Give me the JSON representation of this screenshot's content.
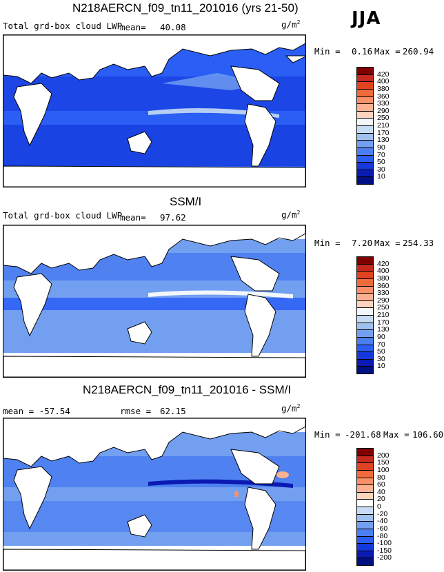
{
  "season": "JJA",
  "panels": [
    {
      "title": "N218AERCN_f09_tn11_201016 (yrs 21-50)",
      "subtitle_left": "Total grd-box cloud LWP",
      "mean_label": "mean=",
      "mean_value": "40.08",
      "units": "g/m",
      "units_sup": "2",
      "min_label": "Min =",
      "min_value": "0.16",
      "max_label": "Max =",
      "max_value": "260.94",
      "colorbar_levels": [
        "420",
        "400",
        "380",
        "360",
        "330",
        "290",
        "250",
        "210",
        "170",
        "130",
        "90",
        "70",
        "50",
        "30",
        "10"
      ],
      "colorbar_colors": [
        "#800000",
        "#c62a1e",
        "#e0431f",
        "#f06a3a",
        "#f8916a",
        "#fbb192",
        "#fdd4bf",
        "#f2f7fb",
        "#c6dbf4",
        "#9ec1ef",
        "#729ff0",
        "#4b7ef0",
        "#2a5ef4",
        "#1438dc",
        "#0a1ab2",
        "#001080"
      ]
    },
    {
      "title": "SSM/I",
      "subtitle_left": "Total grd-box cloud LWP",
      "mean_label": "mean=",
      "mean_value": "97.62",
      "units": "g/m",
      "units_sup": "2",
      "min_label": "Min =",
      "min_value": "7.20",
      "max_label": "Max =",
      "max_value": "254.33",
      "colorbar_levels": [
        "420",
        "400",
        "380",
        "360",
        "330",
        "290",
        "250",
        "210",
        "170",
        "130",
        "90",
        "70",
        "50",
        "30",
        "10"
      ],
      "colorbar_colors": [
        "#800000",
        "#c62a1e",
        "#e0431f",
        "#f06a3a",
        "#f8916a",
        "#fbb192",
        "#fdd4bf",
        "#f2f7fb",
        "#c6dbf4",
        "#9ec1ef",
        "#729ff0",
        "#4b7ef0",
        "#2a5ef4",
        "#1438dc",
        "#0a1ab2",
        "#001080"
      ]
    },
    {
      "title": "N218AERCN_f09_tn11_201016 - SSM/I",
      "subtitle_left": "mean = -57.54",
      "rmse_label": "rmse =",
      "rmse_value": "62.15",
      "units": "g/m",
      "units_sup": "2",
      "min_label": "Min =",
      "min_value": "-201.68",
      "max_label": "Max =",
      "max_value": "106.60",
      "colorbar_levels": [
        "200",
        "150",
        "100",
        "80",
        "60",
        "40",
        "20",
        "0",
        "-20",
        "-40",
        "-60",
        "-80",
        "-100",
        "-150",
        "-200"
      ],
      "colorbar_colors": [
        "#800000",
        "#c62a1e",
        "#e0431f",
        "#f06a3a",
        "#f8916a",
        "#fbb192",
        "#fdd4bf",
        "#ffffff",
        "#c6dbf4",
        "#9ec1ef",
        "#729ff0",
        "#4b7ef0",
        "#2a5ef4",
        "#1438dc",
        "#0a1ab2",
        "#001080"
      ]
    }
  ],
  "chart_data": [
    {
      "type": "heatmap",
      "title": "N218AERCN_f09_tn11_201016 (yrs 21-50)",
      "subtitle": "Total grd-box cloud LWP",
      "units": "g/m^2",
      "mean": 40.08,
      "min": 0.16,
      "max": 260.94,
      "levels": [
        10,
        30,
        50,
        70,
        90,
        130,
        170,
        210,
        250,
        290,
        330,
        360,
        380,
        400,
        420
      ]
    },
    {
      "type": "heatmap",
      "title": "SSM/I",
      "subtitle": "Total grd-box cloud LWP",
      "units": "g/m^2",
      "mean": 97.62,
      "min": 7.2,
      "max": 254.33,
      "levels": [
        10,
        30,
        50,
        70,
        90,
        130,
        170,
        210,
        250,
        290,
        330,
        360,
        380,
        400,
        420
      ]
    },
    {
      "type": "heatmap",
      "title": "N218AERCN_f09_tn11_201016 - SSM/I",
      "units": "g/m^2",
      "mean": -57.54,
      "rmse": 62.15,
      "min": -201.68,
      "max": 106.6,
      "levels": [
        -200,
        -150,
        -100,
        -80,
        -60,
        -40,
        -20,
        0,
        20,
        40,
        60,
        80,
        100,
        150,
        200
      ]
    }
  ]
}
